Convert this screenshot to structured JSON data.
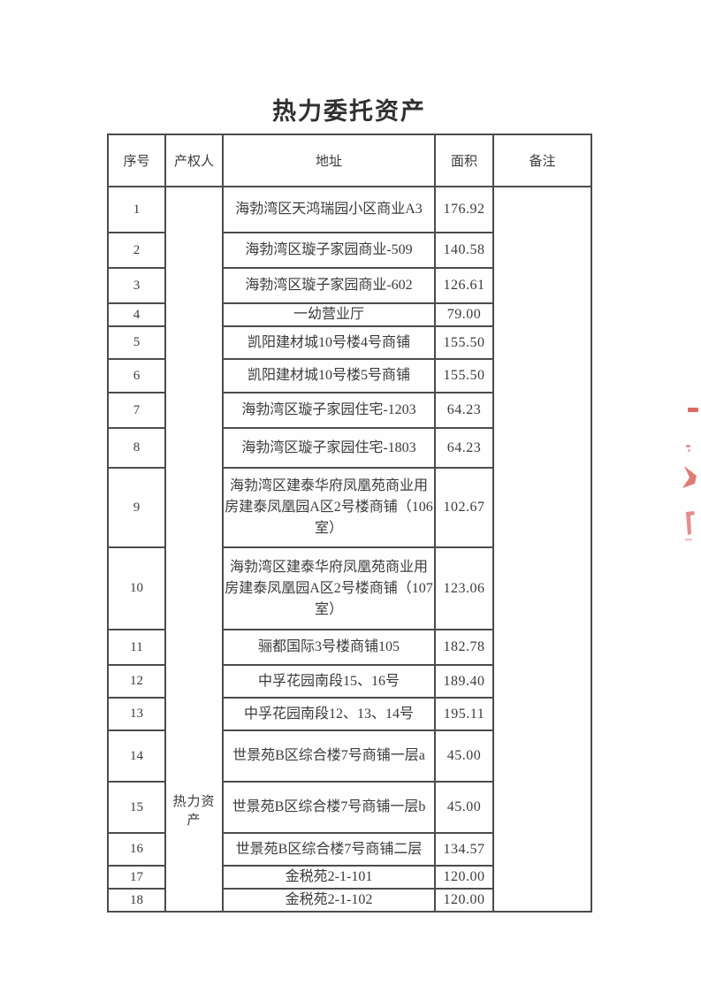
{
  "page": {
    "title": "热力委托资产"
  },
  "table": {
    "headers": [
      "序号",
      "产权人",
      "地址",
      "面积",
      "备注"
    ],
    "owner_label": "热力资产",
    "rows": [
      {
        "no": "1",
        "address": "海勃湾区天鸿瑞园小区商业A3",
        "area": "176.92"
      },
      {
        "no": "2",
        "address": "海勃湾区璇子家园商业-509",
        "area": "140.58"
      },
      {
        "no": "3",
        "address": "海勃湾区璇子家园商业-602",
        "area": "126.61"
      },
      {
        "no": "4",
        "address": "一幼营业厅",
        "area": "79.00"
      },
      {
        "no": "5",
        "address": "凯阳建材城10号楼4号商铺",
        "area": "155.50"
      },
      {
        "no": "6",
        "address": "凯阳建材城10号楼5号商铺",
        "area": "155.50"
      },
      {
        "no": "7",
        "address": "海勃湾区璇子家园住宅-1203",
        "area": "64.23"
      },
      {
        "no": "8",
        "address": "海勃湾区璇子家园住宅-1803",
        "area": "64.23"
      },
      {
        "no": "9",
        "address": "海勃湾区建泰华府凤凰苑商业用房建泰凤凰园A区2号楼商铺（106室）",
        "area": "102.67"
      },
      {
        "no": "10",
        "address": "海勃湾区建泰华府凤凰苑商业用房建泰凤凰园A区2号楼商铺（107室）",
        "area": "123.06"
      },
      {
        "no": "11",
        "address": "骊都国际3号楼商铺105",
        "area": "182.78"
      },
      {
        "no": "12",
        "address": "中孚花园南段15、16号",
        "area": "189.40"
      },
      {
        "no": "13",
        "address": "中孚花园南段12、13、14号",
        "area": "195.11"
      },
      {
        "no": "14",
        "address": "世景苑B区综合楼7号商铺一层a",
        "area": "45.00"
      },
      {
        "no": "15",
        "address": "世景苑B区综合楼7号商铺一层b",
        "area": "45.00"
      },
      {
        "no": "16",
        "address": "世景苑B区综合楼7号商铺二层",
        "area": "134.57"
      },
      {
        "no": "17",
        "address": "金税苑2-1-101",
        "area": "120.00"
      },
      {
        "no": "18",
        "address": "金税苑2-1-102",
        "area": "120.00"
      }
    ]
  },
  "stamp": {
    "color": "#d65049"
  }
}
